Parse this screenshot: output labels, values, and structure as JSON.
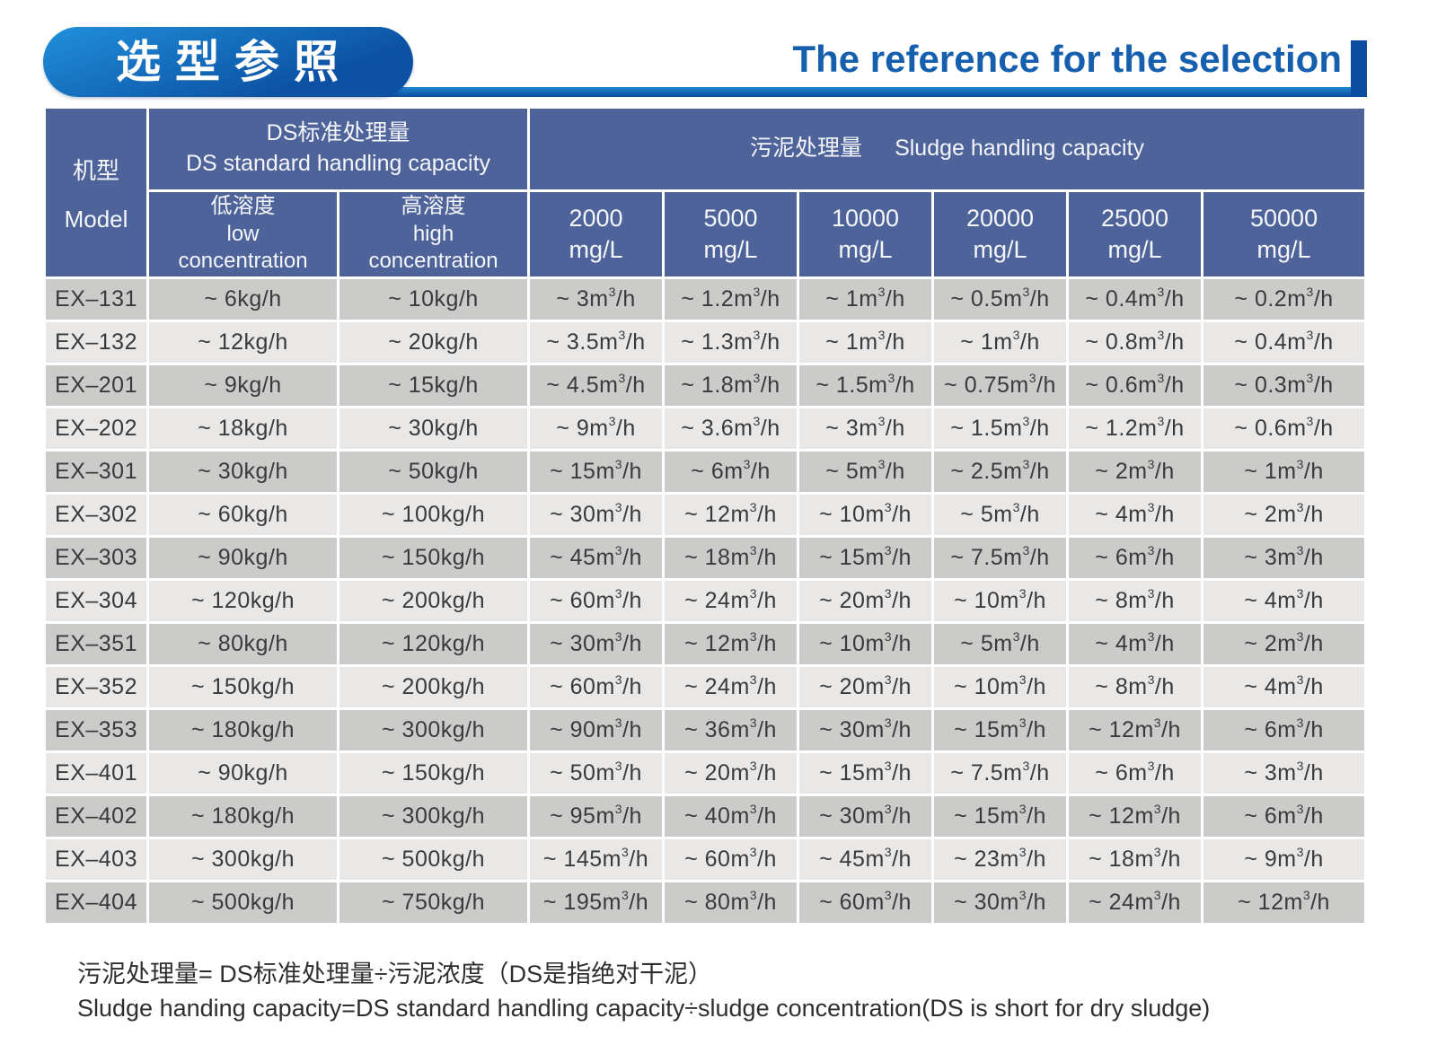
{
  "title": {
    "zh": "选型参照",
    "en": "The reference for the selection"
  },
  "colors": {
    "title-blue-light": "#2090dc",
    "title-blue-dark": "#0c51a3",
    "stripe-top": "#1e86d2",
    "stripe-bottom": "#0b4d9e",
    "title-en": "#155fae",
    "header-bg": "#4d639a",
    "row-dark": "#cbcbca",
    "row-light": "#e9e8e7",
    "text-dark": "#3a3a3a"
  },
  "table": {
    "header": {
      "model_lines": [
        "机型",
        "Model"
      ],
      "ds_lines": [
        "DS标准处理量",
        "DS standard handling capacity"
      ],
      "sludge_zh": "污泥处理量",
      "sludge_en": "Sludge handling capacity",
      "low_lines": [
        "低溶度",
        "low",
        "concentration"
      ],
      "high_lines": [
        "高溶度",
        "high",
        "concentration"
      ],
      "concentrations": [
        {
          "value": "2000",
          "unit": "mg/L"
        },
        {
          "value": "5000",
          "unit": "mg/L"
        },
        {
          "value": "10000",
          "unit": "mg/L"
        },
        {
          "value": "20000",
          "unit": "mg/L"
        },
        {
          "value": "25000",
          "unit": "mg/L"
        },
        {
          "value": "50000",
          "unit": "mg/L"
        }
      ]
    },
    "rows": [
      {
        "model": "EX–131",
        "low": "~ 6kg/h",
        "high": "~ 10kg/h",
        "values": [
          "~ 3m³/h",
          "~ 1.2m³/h",
          "~ 1m³/h",
          "~ 0.5m³/h",
          "~ 0.4m³/h",
          "~ 0.2m³/h"
        ]
      },
      {
        "model": "EX–132",
        "low": "~ 12kg/h",
        "high": "~ 20kg/h",
        "values": [
          "~ 3.5m³/h",
          "~ 1.3m³/h",
          "~ 1m³/h",
          "~ 1m³/h",
          "~ 0.8m³/h",
          "~ 0.4m³/h"
        ]
      },
      {
        "model": "EX–201",
        "low": "~ 9kg/h",
        "high": "~ 15kg/h",
        "values": [
          "~ 4.5m³/h",
          "~ 1.8m³/h",
          "~ 1.5m³/h",
          "~ 0.75m³/h",
          "~ 0.6m³/h",
          "~ 0.3m³/h"
        ]
      },
      {
        "model": "EX–202",
        "low": "~ 18kg/h",
        "high": "~ 30kg/h",
        "values": [
          "~ 9m³/h",
          "~ 3.6m³/h",
          "~ 3m³/h",
          "~ 1.5m³/h",
          "~ 1.2m³/h",
          "~ 0.6m³/h"
        ]
      },
      {
        "model": "EX–301",
        "low": "~ 30kg/h",
        "high": "~ 50kg/h",
        "values": [
          "~ 15m³/h",
          "~ 6m³/h",
          "~ 5m³/h",
          "~ 2.5m³/h",
          "~ 2m³/h",
          "~ 1m³/h"
        ]
      },
      {
        "model": "EX–302",
        "low": "~ 60kg/h",
        "high": "~ 100kg/h",
        "values": [
          "~ 30m³/h",
          "~ 12m³/h",
          "~ 10m³/h",
          "~ 5m³/h",
          "~ 4m³/h",
          "~ 2m³/h"
        ]
      },
      {
        "model": "EX–303",
        "low": "~ 90kg/h",
        "high": "~ 150kg/h",
        "values": [
          "~ 45m³/h",
          "~ 18m³/h",
          "~ 15m³/h",
          "~ 7.5m³/h",
          "~ 6m³/h",
          "~ 3m³/h"
        ]
      },
      {
        "model": "EX–304",
        "low": "~ 120kg/h",
        "high": "~ 200kg/h",
        "values": [
          "~ 60m³/h",
          "~ 24m³/h",
          "~ 20m³/h",
          "~ 10m³/h",
          "~ 8m³/h",
          "~ 4m³/h"
        ]
      },
      {
        "model": "EX–351",
        "low": "~ 80kg/h",
        "high": "~ 120kg/h",
        "values": [
          "~ 30m³/h",
          "~ 12m³/h",
          "~ 10m³/h",
          "~ 5m³/h",
          "~ 4m³/h",
          "~ 2m³/h"
        ]
      },
      {
        "model": "EX–352",
        "low": "~ 150kg/h",
        "high": "~ 200kg/h",
        "values": [
          "~ 60m³/h",
          "~ 24m³/h",
          "~ 20m³/h",
          "~ 10m³/h",
          "~ 8m³/h",
          "~ 4m³/h"
        ]
      },
      {
        "model": "EX–353",
        "low": "~ 180kg/h",
        "high": "~ 300kg/h",
        "values": [
          "~ 90m³/h",
          "~ 36m³/h",
          "~ 30m³/h",
          "~ 15m³/h",
          "~ 12m³/h",
          "~ 6m³/h"
        ]
      },
      {
        "model": "EX–401",
        "low": "~ 90kg/h",
        "high": "~ 150kg/h",
        "values": [
          "~ 50m³/h",
          "~ 20m³/h",
          "~ 15m³/h",
          "~ 7.5m³/h",
          "~ 6m³/h",
          "~ 3m³/h"
        ]
      },
      {
        "model": "EX–402",
        "low": "~ 180kg/h",
        "high": "~ 300kg/h",
        "values": [
          "~ 95m³/h",
          "~ 40m³/h",
          "~ 30m³/h",
          "~ 15m³/h",
          "~ 12m³/h",
          "~ 6m³/h"
        ]
      },
      {
        "model": "EX–403",
        "low": "~ 300kg/h",
        "high": "~ 500kg/h",
        "values": [
          "~ 145m³/h",
          "~ 60m³/h",
          "~ 45m³/h",
          "~ 23m³/h",
          "~ 18m³/h",
          "~ 9m³/h"
        ]
      },
      {
        "model": "EX–404",
        "low": "~ 500kg/h",
        "high": "~ 750kg/h",
        "values": [
          "~ 195m³/h",
          "~ 80m³/h",
          "~ 60m³/h",
          "~ 30m³/h",
          "~ 24m³/h",
          "~ 12m³/h"
        ]
      }
    ]
  },
  "footnote": {
    "zh": "污泥处理量= DS标准处理量÷污泥浓度（DS是指绝对干泥）",
    "en": "Sludge handing capacity=DS standard handling capacity÷sludge concentration(DS is short for dry sludge)"
  }
}
